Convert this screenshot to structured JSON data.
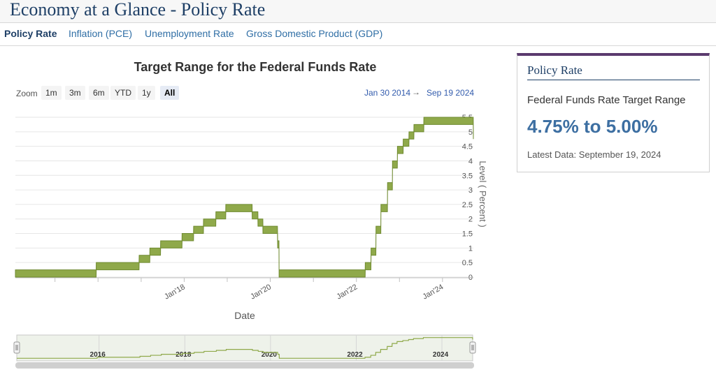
{
  "page": {
    "title": "Economy at a Glance - Policy Rate",
    "tabs": [
      {
        "label": "Policy Rate",
        "active": true
      },
      {
        "label": "Inflation (PCE)",
        "active": false
      },
      {
        "label": "Unemployment Rate",
        "active": false
      },
      {
        "label": "Gross Domestic Product (GDP)",
        "active": false
      }
    ]
  },
  "toolbar": {
    "zoom_label": "Zoom",
    "zoom_buttons": [
      "1m",
      "3m",
      "6m",
      "YTD",
      "1y",
      "All"
    ],
    "active_zoom": "All",
    "range_from": "Jan 30 2014",
    "range_arrow": "→",
    "range_to": "Sep 19 2024"
  },
  "chart_data": {
    "type": "area",
    "title": "Target Range for the Federal Funds Rate",
    "xlabel": "Date",
    "ylabel": "Level ( Percent )",
    "xlim": [
      "2014-01-30",
      "2024-09-19"
    ],
    "ylim": [
      0,
      5.5
    ],
    "yticks": [
      "0",
      "0.5",
      "1",
      "1.5",
      "2",
      "2.5",
      "3",
      "3.5",
      "4",
      "4.5",
      "5",
      "5.5"
    ],
    "xticks": [
      {
        "date": "2018-01-01",
        "label": "Jan'18"
      },
      {
        "date": "2020-01-01",
        "label": "Jan'20"
      },
      {
        "date": "2022-01-01",
        "label": "Jan'22"
      },
      {
        "date": "2024-01-01",
        "label": "Jan'24"
      }
    ],
    "navigator_ticks": [
      {
        "date": "2016-01-01",
        "label": "2016"
      },
      {
        "date": "2018-01-01",
        "label": "2018"
      },
      {
        "date": "2020-01-01",
        "label": "2020"
      },
      {
        "date": "2022-01-01",
        "label": "2022"
      },
      {
        "date": "2024-01-01",
        "label": "2024"
      }
    ],
    "series": [
      {
        "color": "#8fa94a",
        "points": [
          [
            "2014-01-30",
            0,
            0.25
          ],
          [
            "2015-12-16",
            0,
            0.25
          ],
          [
            "2015-12-17",
            0.25,
            0.5
          ],
          [
            "2016-12-14",
            0.25,
            0.5
          ],
          [
            "2016-12-15",
            0.5,
            0.75
          ],
          [
            "2017-03-15",
            0.5,
            0.75
          ],
          [
            "2017-03-16",
            0.75,
            1.0
          ],
          [
            "2017-06-14",
            0.75,
            1.0
          ],
          [
            "2017-06-15",
            1.0,
            1.25
          ],
          [
            "2017-12-13",
            1.0,
            1.25
          ],
          [
            "2017-12-14",
            1.25,
            1.5
          ],
          [
            "2018-03-21",
            1.25,
            1.5
          ],
          [
            "2018-03-22",
            1.5,
            1.75
          ],
          [
            "2018-06-13",
            1.5,
            1.75
          ],
          [
            "2018-06-14",
            1.75,
            2.0
          ],
          [
            "2018-09-26",
            1.75,
            2.0
          ],
          [
            "2018-09-27",
            2.0,
            2.25
          ],
          [
            "2018-12-19",
            2.0,
            2.25
          ],
          [
            "2018-12-20",
            2.25,
            2.5
          ],
          [
            "2019-07-31",
            2.25,
            2.5
          ],
          [
            "2019-08-01",
            2.0,
            2.25
          ],
          [
            "2019-09-18",
            2.0,
            2.25
          ],
          [
            "2019-09-19",
            1.75,
            2.0
          ],
          [
            "2019-10-30",
            1.75,
            2.0
          ],
          [
            "2019-10-31",
            1.5,
            1.75
          ],
          [
            "2020-03-02",
            1.5,
            1.75
          ],
          [
            "2020-03-04",
            1.0,
            1.25
          ],
          [
            "2020-03-15",
            1.0,
            1.25
          ],
          [
            "2020-03-16",
            0,
            0.25
          ],
          [
            "2022-03-16",
            0,
            0.25
          ],
          [
            "2022-03-17",
            0.25,
            0.5
          ],
          [
            "2022-05-04",
            0.25,
            0.5
          ],
          [
            "2022-05-05",
            0.75,
            1.0
          ],
          [
            "2022-06-15",
            0.75,
            1.0
          ],
          [
            "2022-06-16",
            1.5,
            1.75
          ],
          [
            "2022-07-27",
            1.5,
            1.75
          ],
          [
            "2022-07-28",
            2.25,
            2.5
          ],
          [
            "2022-09-21",
            2.25,
            2.5
          ],
          [
            "2022-09-22",
            3.0,
            3.25
          ],
          [
            "2022-11-02",
            3.0,
            3.25
          ],
          [
            "2022-11-03",
            3.75,
            4.0
          ],
          [
            "2022-12-14",
            3.75,
            4.0
          ],
          [
            "2022-12-15",
            4.25,
            4.5
          ],
          [
            "2023-02-01",
            4.25,
            4.5
          ],
          [
            "2023-02-02",
            4.5,
            4.75
          ],
          [
            "2023-03-22",
            4.5,
            4.75
          ],
          [
            "2023-03-23",
            4.75,
            5.0
          ],
          [
            "2023-05-03",
            4.75,
            5.0
          ],
          [
            "2023-05-04",
            5.0,
            5.25
          ],
          [
            "2023-07-26",
            5.0,
            5.25
          ],
          [
            "2023-07-27",
            5.25,
            5.5
          ],
          [
            "2024-09-18",
            5.25,
            5.5
          ],
          [
            "2024-09-19",
            4.75,
            5.0
          ]
        ]
      }
    ],
    "legend": "none",
    "grid": true
  },
  "side_panel": {
    "title": "Policy Rate",
    "label": "Federal Funds Rate Target Range",
    "value": "4.75% to 5.00%",
    "latest": "Latest Data: September 19, 2024"
  }
}
